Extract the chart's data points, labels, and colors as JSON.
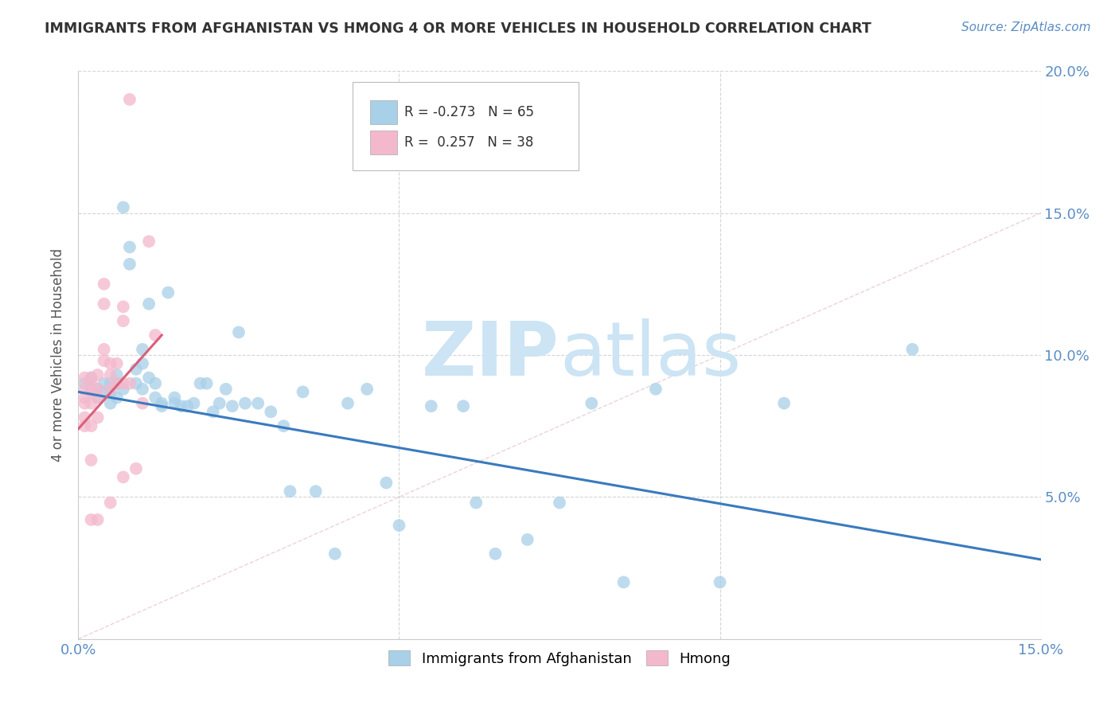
{
  "title": "IMMIGRANTS FROM AFGHANISTAN VS HMONG 4 OR MORE VEHICLES IN HOUSEHOLD CORRELATION CHART",
  "source": "Source: ZipAtlas.com",
  "ylabel": "4 or more Vehicles in Household",
  "legend_blue_label": "Immigrants from Afghanistan",
  "legend_pink_label": "Hmong",
  "R_blue": -0.273,
  "N_blue": 65,
  "R_pink": 0.257,
  "N_pink": 38,
  "xlim": [
    0,
    0.15
  ],
  "ylim": [
    0,
    0.2
  ],
  "xticks": [
    0.0,
    0.05,
    0.1,
    0.15
  ],
  "yticks": [
    0.0,
    0.05,
    0.1,
    0.15,
    0.2
  ],
  "xtick_labels": [
    "0.0%",
    "",
    "",
    "15.0%"
  ],
  "ytick_labels_right": [
    "",
    "5.0%",
    "10.0%",
    "15.0%",
    "20.0%"
  ],
  "blue_color": "#a8d0e8",
  "pink_color": "#f4b8cc",
  "blue_line_color": "#3a7abf",
  "pink_line_color": "#d9607a",
  "diag_line_color": "#e8c8d0",
  "watermark_color": "#cce4f4",
  "background_color": "#ffffff",
  "tick_color": "#5b8ec4",
  "blue_line_x0": 0.0,
  "blue_line_y0": 0.087,
  "blue_line_x1": 0.15,
  "blue_line_y1": 0.028,
  "pink_line_x0": 0.0,
  "pink_line_y0": 0.074,
  "pink_line_x1": 0.013,
  "pink_line_y1": 0.107,
  "blue_scatter_x": [
    0.001,
    0.002,
    0.002,
    0.003,
    0.003,
    0.004,
    0.004,
    0.005,
    0.005,
    0.005,
    0.006,
    0.006,
    0.006,
    0.007,
    0.007,
    0.008,
    0.008,
    0.009,
    0.009,
    0.01,
    0.01,
    0.01,
    0.011,
    0.011,
    0.012,
    0.012,
    0.013,
    0.013,
    0.014,
    0.015,
    0.015,
    0.016,
    0.017,
    0.018,
    0.019,
    0.02,
    0.021,
    0.022,
    0.023,
    0.024,
    0.025,
    0.026,
    0.028,
    0.03,
    0.032,
    0.033,
    0.035,
    0.037,
    0.04,
    0.042,
    0.045,
    0.048,
    0.05,
    0.055,
    0.06,
    0.062,
    0.065,
    0.07,
    0.075,
    0.08,
    0.085,
    0.09,
    0.1,
    0.11,
    0.13
  ],
  "blue_scatter_y": [
    0.09,
    0.092,
    0.088,
    0.088,
    0.085,
    0.09,
    0.087,
    0.09,
    0.087,
    0.083,
    0.093,
    0.09,
    0.085,
    0.152,
    0.088,
    0.132,
    0.138,
    0.09,
    0.095,
    0.102,
    0.097,
    0.088,
    0.118,
    0.092,
    0.09,
    0.085,
    0.083,
    0.082,
    0.122,
    0.085,
    0.083,
    0.082,
    0.082,
    0.083,
    0.09,
    0.09,
    0.08,
    0.083,
    0.088,
    0.082,
    0.108,
    0.083,
    0.083,
    0.08,
    0.075,
    0.052,
    0.087,
    0.052,
    0.03,
    0.083,
    0.088,
    0.055,
    0.04,
    0.082,
    0.082,
    0.048,
    0.03,
    0.035,
    0.048,
    0.083,
    0.02,
    0.088,
    0.02,
    0.083,
    0.102
  ],
  "pink_scatter_x": [
    0.001,
    0.001,
    0.001,
    0.001,
    0.001,
    0.001,
    0.002,
    0.002,
    0.002,
    0.002,
    0.002,
    0.002,
    0.002,
    0.003,
    0.003,
    0.003,
    0.003,
    0.003,
    0.004,
    0.004,
    0.004,
    0.004,
    0.005,
    0.005,
    0.005,
    0.005,
    0.006,
    0.006,
    0.007,
    0.007,
    0.007,
    0.007,
    0.008,
    0.008,
    0.009,
    0.01,
    0.011,
    0.012
  ],
  "pink_scatter_y": [
    0.092,
    0.088,
    0.085,
    0.083,
    0.078,
    0.075,
    0.092,
    0.09,
    0.087,
    0.083,
    0.075,
    0.063,
    0.042,
    0.093,
    0.088,
    0.085,
    0.078,
    0.042,
    0.125,
    0.118,
    0.102,
    0.098,
    0.097,
    0.093,
    0.088,
    0.048,
    0.097,
    0.09,
    0.117,
    0.112,
    0.09,
    0.057,
    0.19,
    0.09,
    0.06,
    0.083,
    0.14,
    0.107
  ]
}
